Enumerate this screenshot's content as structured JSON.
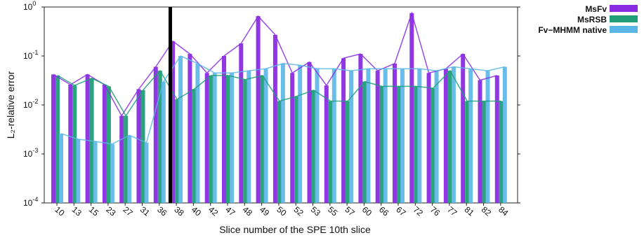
{
  "chart_data": {
    "type": "bar",
    "title": "",
    "xlabel": "Slice number of the SPE 10th slice",
    "ylabel": "L₂-relative error",
    "yscale": "log",
    "ylim": [
      0.0001,
      1
    ],
    "yticks": [
      {
        "value": 1,
        "base": "10",
        "exp": "0"
      },
      {
        "value": 0.1,
        "base": "10",
        "exp": "-1"
      },
      {
        "value": 0.01,
        "base": "10",
        "exp": "-2"
      },
      {
        "value": 0.001,
        "base": "10",
        "exp": "-3"
      },
      {
        "value": 0.0001,
        "base": "10",
        "exp": "-4"
      }
    ],
    "categories": [
      "10",
      "13",
      "15",
      "23",
      "27",
      "31",
      "36",
      "38",
      "40",
      "42",
      "47",
      "48",
      "49",
      "50",
      "52",
      "53",
      "55",
      "57",
      "60",
      "66",
      "67",
      "72",
      "76",
      "77",
      "81",
      "82",
      "84"
    ],
    "series": [
      {
        "name": "MsFv",
        "color": "#8a2be2",
        "values": [
          0.042,
          0.026,
          0.042,
          0.026,
          0.006,
          0.021,
          0.06,
          0.2,
          0.11,
          0.045,
          0.1,
          0.18,
          0.65,
          0.27,
          0.045,
          0.075,
          0.025,
          0.09,
          0.11,
          0.05,
          0.07,
          0.75,
          0.045,
          0.055,
          0.11,
          0.032,
          0.04
        ]
      },
      {
        "name": "MsRSB",
        "color": "#1f9e77",
        "values": [
          0.04,
          0.025,
          0.035,
          0.024,
          0.006,
          0.02,
          0.05,
          0.013,
          0.021,
          0.04,
          0.04,
          0.033,
          0.04,
          0.012,
          0.015,
          0.02,
          0.012,
          0.012,
          0.03,
          0.024,
          0.024,
          0.024,
          0.022,
          0.05,
          0.012,
          0.012,
          0.012
        ]
      },
      {
        "name": "Fv−MHMM native",
        "color": "#5ab6e6",
        "values": [
          0.0026,
          0.002,
          0.0018,
          0.0016,
          0.0024,
          0.0017,
          0.03,
          0.1,
          0.07,
          0.045,
          0.045,
          0.05,
          0.055,
          0.07,
          0.065,
          0.055,
          0.055,
          0.05,
          0.055,
          0.055,
          0.055,
          0.055,
          0.05,
          0.06,
          0.055,
          0.05,
          0.06
        ]
      }
    ],
    "grid": false,
    "legend_position": "top-right"
  }
}
